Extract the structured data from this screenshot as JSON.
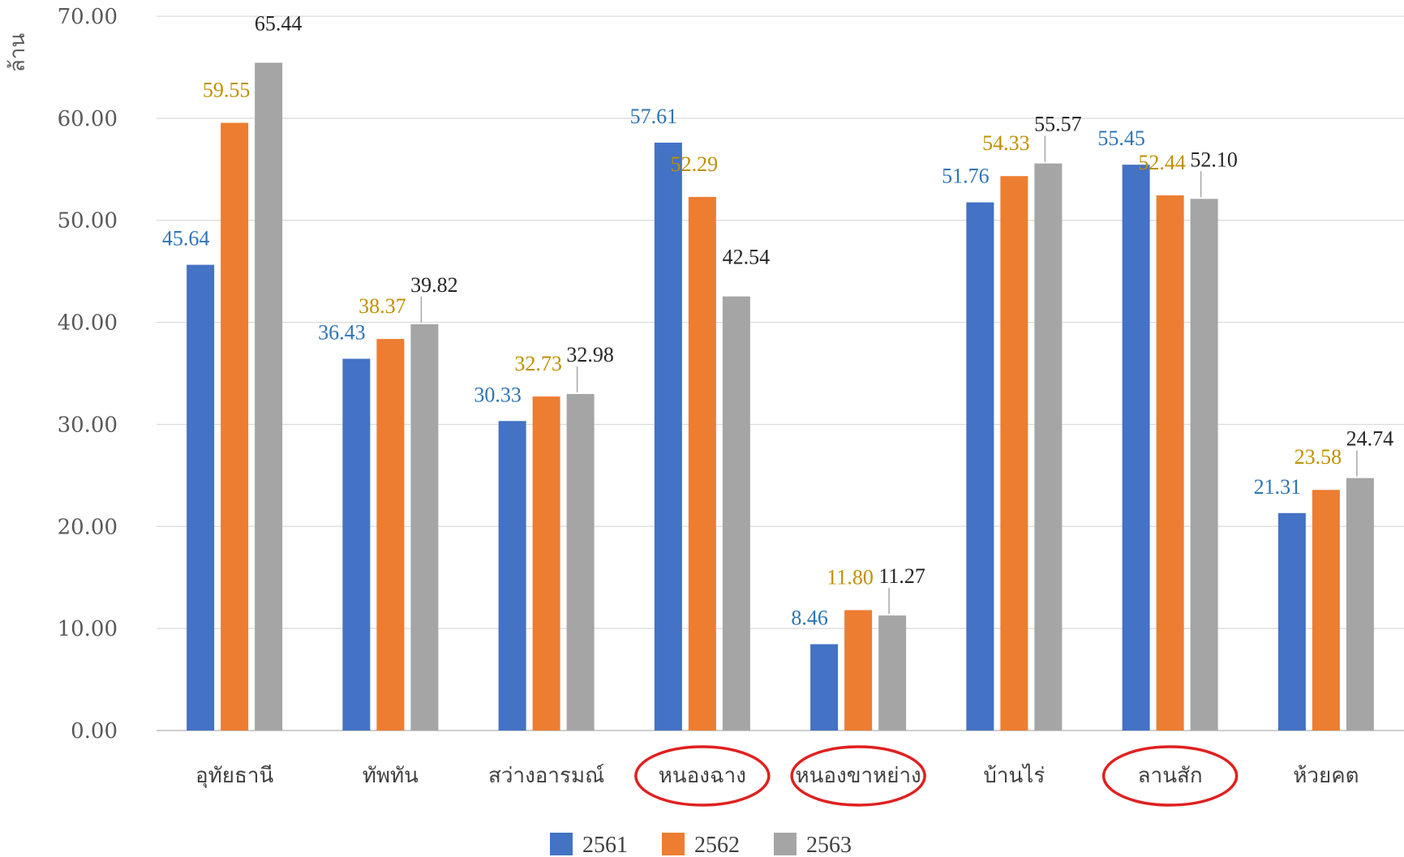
{
  "chart_data": {
    "type": "bar",
    "title": "",
    "ylabel": "ล้าน",
    "xlabel": "",
    "ylim": [
      0,
      70
    ],
    "ytick_step": 10,
    "ytick_labels": [
      "0.00",
      "10.00",
      "20.00",
      "30.00",
      "40.00",
      "50.00",
      "60.00",
      "70.00"
    ],
    "grid": true,
    "legend": "bottom",
    "categories": [
      "อุทัยธานี",
      "ทัพทัน",
      "สว่างอารมณ์",
      "หนองฉาง",
      "หนองขาหย่าง",
      "บ้านไร่",
      "ลานสัก",
      "ห้วยคต"
    ],
    "highlighted_categories": [
      "หนองฉาง",
      "หนองขาหย่าง",
      "ลานสัก"
    ],
    "highlight_color": "#e02020",
    "series": [
      {
        "name": "2561",
        "color": "#4472c4",
        "label_color": "#2e75b6",
        "values": [
          45.64,
          36.43,
          30.33,
          57.61,
          8.46,
          51.76,
          55.45,
          21.31
        ],
        "labels": [
          "45.64",
          "36.43",
          "30.33",
          "57.61",
          "8.46",
          "51.76",
          "55.45",
          "21.31"
        ]
      },
      {
        "name": "2562",
        "color": "#ed7d31",
        "label_color": "#bf9000",
        "values": [
          59.55,
          38.37,
          32.73,
          52.29,
          11.8,
          54.33,
          52.44,
          23.58
        ],
        "labels": [
          "59.55",
          "38.37",
          "32.73",
          "52.29",
          "11.80",
          "54.33",
          "52.44",
          "23.58"
        ]
      },
      {
        "name": "2563",
        "color": "#a5a5a5",
        "label_color": "#262626",
        "values": [
          65.44,
          39.82,
          32.98,
          42.54,
          11.27,
          55.57,
          52.1,
          24.74
        ],
        "labels": [
          "65.44",
          "39.82",
          "32.98",
          "42.54",
          "11.27",
          "55.57",
          "52.10",
          "24.74"
        ]
      }
    ]
  }
}
